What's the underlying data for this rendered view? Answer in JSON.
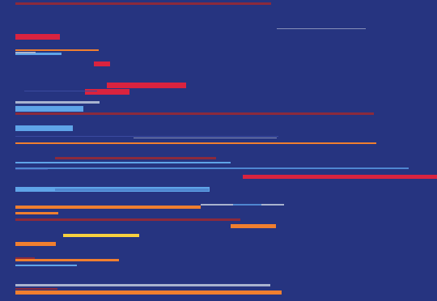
{
  "background": "#263480",
  "colors": {
    "dark_red": "#8b2a3c",
    "crimson": "#d9233f",
    "orange": "#f07f2f",
    "light_blue": "#5fa4e8",
    "medium_blue": "#4f86d0",
    "light_gray": "#a9b3cf",
    "dim_blue": "#3b4aa0",
    "yellow": "#f6d03f",
    "pale_gray": "#8790b8"
  }
}
